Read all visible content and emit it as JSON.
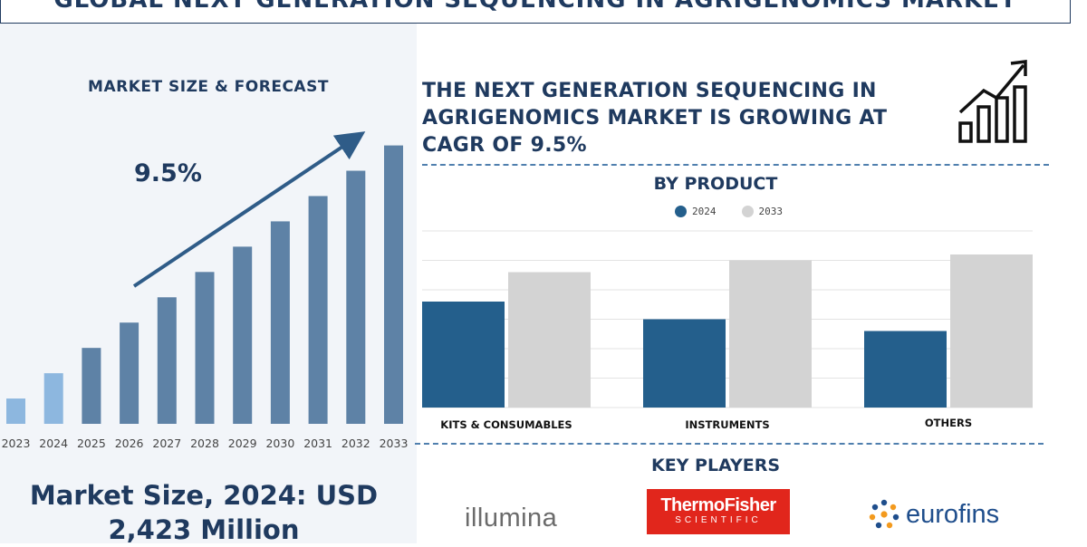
{
  "header": {
    "title": "Global Next Generation Sequencing in Agrigenomics Market"
  },
  "left_panel": {
    "title": "MARKET SIZE & FORECAST",
    "cagr": "9.5%",
    "market_size_line1": "Market Size, 2024: USD",
    "market_size_line2": "2,423 Million"
  },
  "right_panel": {
    "headline": "THE NEXT GENERATION SEQUENCING IN AGRIGENOMICS MARKET IS GROWING AT CAGR OF 9.5%",
    "chart_title": "BY PRODUCT",
    "key_players_title": "KEY PLAYERS",
    "key_players": {
      "illumina": "illumina",
      "thermo_main": "ThermoFisher",
      "thermo_sub": "SCIENTIFIC",
      "eurofins": "eurofins"
    }
  },
  "icons": {
    "growth": "bar-chart-growth-icon",
    "eurofins": "eurofins-dots-icon"
  },
  "colors": {
    "navy": "#1f3a5f",
    "bar_steel": "#5e82a6",
    "bar_light": "#8db7df",
    "s2024": "#245f8c",
    "s2033": "#d3d3d3",
    "thermo_red": "#e1261c"
  },
  "chart_data": [
    {
      "type": "bar",
      "title": "MARKET SIZE & FORECAST",
      "categories": [
        "2023",
        "2024",
        "2025",
        "2026",
        "2027",
        "2028",
        "2029",
        "2030",
        "2031",
        "2032",
        "2033"
      ],
      "values": [
        1,
        2,
        3,
        4,
        5,
        6,
        7,
        8,
        9,
        10,
        11
      ],
      "ylim": [
        0,
        11.2
      ],
      "annotation": "9.5%",
      "grid": false
    },
    {
      "type": "bar",
      "title": "BY PRODUCT",
      "categories": [
        "KITS & CONSUMABLES",
        "INSTRUMENTS",
        "OTHERS"
      ],
      "series": [
        {
          "name": "2024",
          "values": [
            36,
            30,
            26
          ]
        },
        {
          "name": "2033",
          "values": [
            46,
            50,
            52
          ]
        }
      ],
      "ylim": [
        0,
        60
      ],
      "grid": true,
      "legend": "top"
    }
  ]
}
